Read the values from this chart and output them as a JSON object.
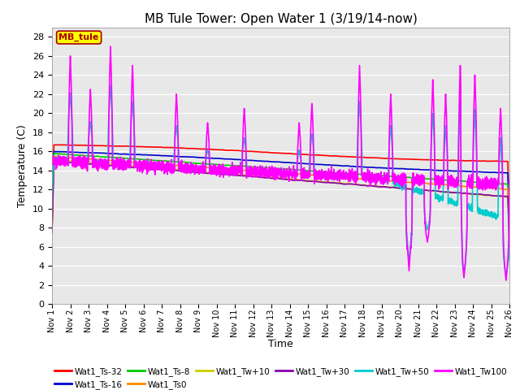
{
  "title": "MB Tule Tower: Open Water 1 (3/19/14-now)",
  "xlabel": "Time",
  "ylabel": "Temperature (C)",
  "ylim": [
    0,
    29
  ],
  "yticks": [
    0,
    2,
    4,
    6,
    8,
    10,
    12,
    14,
    16,
    18,
    20,
    22,
    24,
    26,
    28
  ],
  "legend_box_label": "MB_tule",
  "legend_box_color": "#ffff00",
  "legend_box_border": "#aa0000",
  "series": [
    {
      "name": "Wat1_Ts-32",
      "color": "#ff0000",
      "lw": 1.2
    },
    {
      "name": "Wat1_Ts-16",
      "color": "#0000cc",
      "lw": 1.2
    },
    {
      "name": "Wat1_Ts-8",
      "color": "#00cc00",
      "lw": 1.2
    },
    {
      "name": "Wat1_Ts0",
      "color": "#ff8800",
      "lw": 1.2
    },
    {
      "name": "Wat1_Tw+10",
      "color": "#cccc00",
      "lw": 1.2
    },
    {
      "name": "Wat1_Tw+30",
      "color": "#8800aa",
      "lw": 1.2
    },
    {
      "name": "Wat1_Tw+50",
      "color": "#00cccc",
      "lw": 1.2
    },
    {
      "name": "Wat1_Tw100",
      "color": "#ff00ff",
      "lw": 1.2
    }
  ],
  "background_color": "#ffffff",
  "plot_bg_color": "#e8e8e8",
  "grid_color": "#ffffff",
  "xtick_labels": [
    "Nov 1",
    "Nov 2",
    "Nov 3",
    "Nov 4",
    "Nov 5",
    "Nov 6",
    "Nov 7",
    "Nov 8",
    "Nov 9",
    "Nov 10",
    "Nov 11",
    "Nov 12",
    "Nov 13",
    "Nov 14",
    "Nov 15",
    "Nov 16",
    "Nov 17",
    "Nov 18",
    "Nov 19",
    "Nov 20",
    "Nov 21",
    "Nov 22",
    "Nov 23",
    "Nov 24",
    "Nov 25",
    "Nov 26"
  ]
}
